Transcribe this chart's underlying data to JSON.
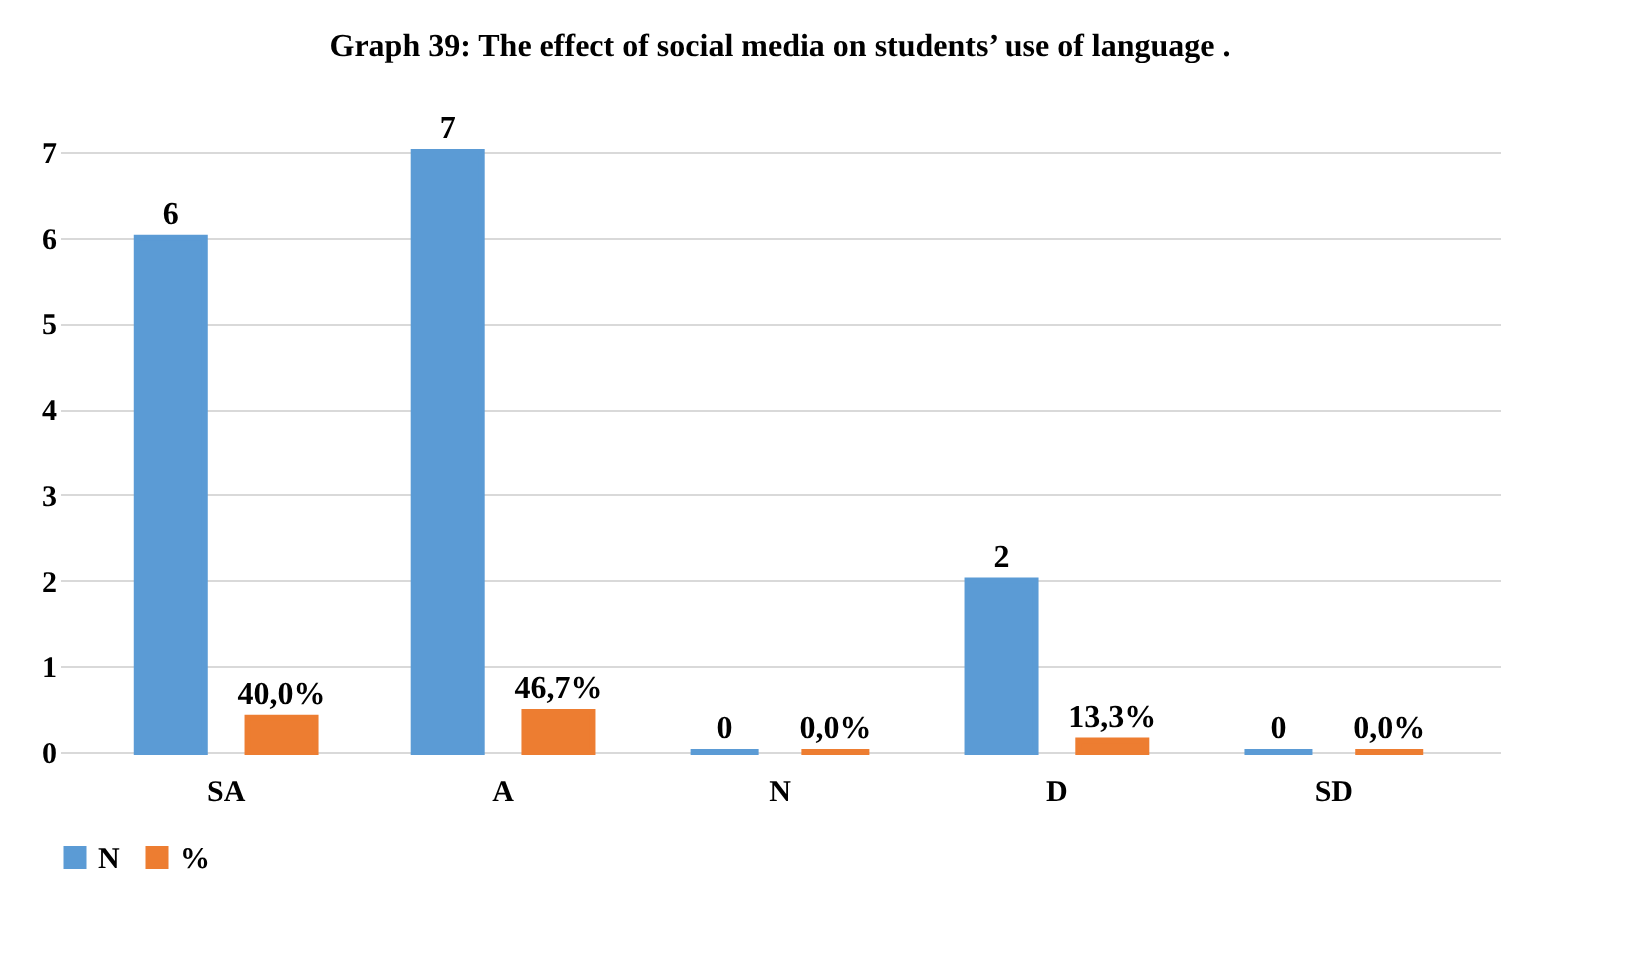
{
  "chart_data": {
    "type": "bar",
    "title": "Graph 39: The effect of social media on students’ use of language .",
    "categories": [
      "SA",
      "A",
      "N",
      "D",
      "SD"
    ],
    "series": [
      {
        "name": "N",
        "color": "#5b9bd5",
        "values": [
          6,
          7,
          0,
          2,
          0
        ],
        "value_labels": [
          "6",
          "7",
          "0",
          "2",
          "0"
        ]
      },
      {
        "name": "%",
        "color": "#ed7d31",
        "values": [
          0.4,
          0.467,
          0,
          0.133,
          0
        ],
        "value_labels": [
          "40,0%",
          "46,7%",
          "0,0%",
          "13,3%",
          "0,0%"
        ]
      }
    ],
    "ylim": [
      0,
      7
    ],
    "yticks": [
      0,
      1,
      2,
      3,
      4,
      5,
      6,
      7
    ],
    "grid": "y",
    "legend": "bottom"
  }
}
